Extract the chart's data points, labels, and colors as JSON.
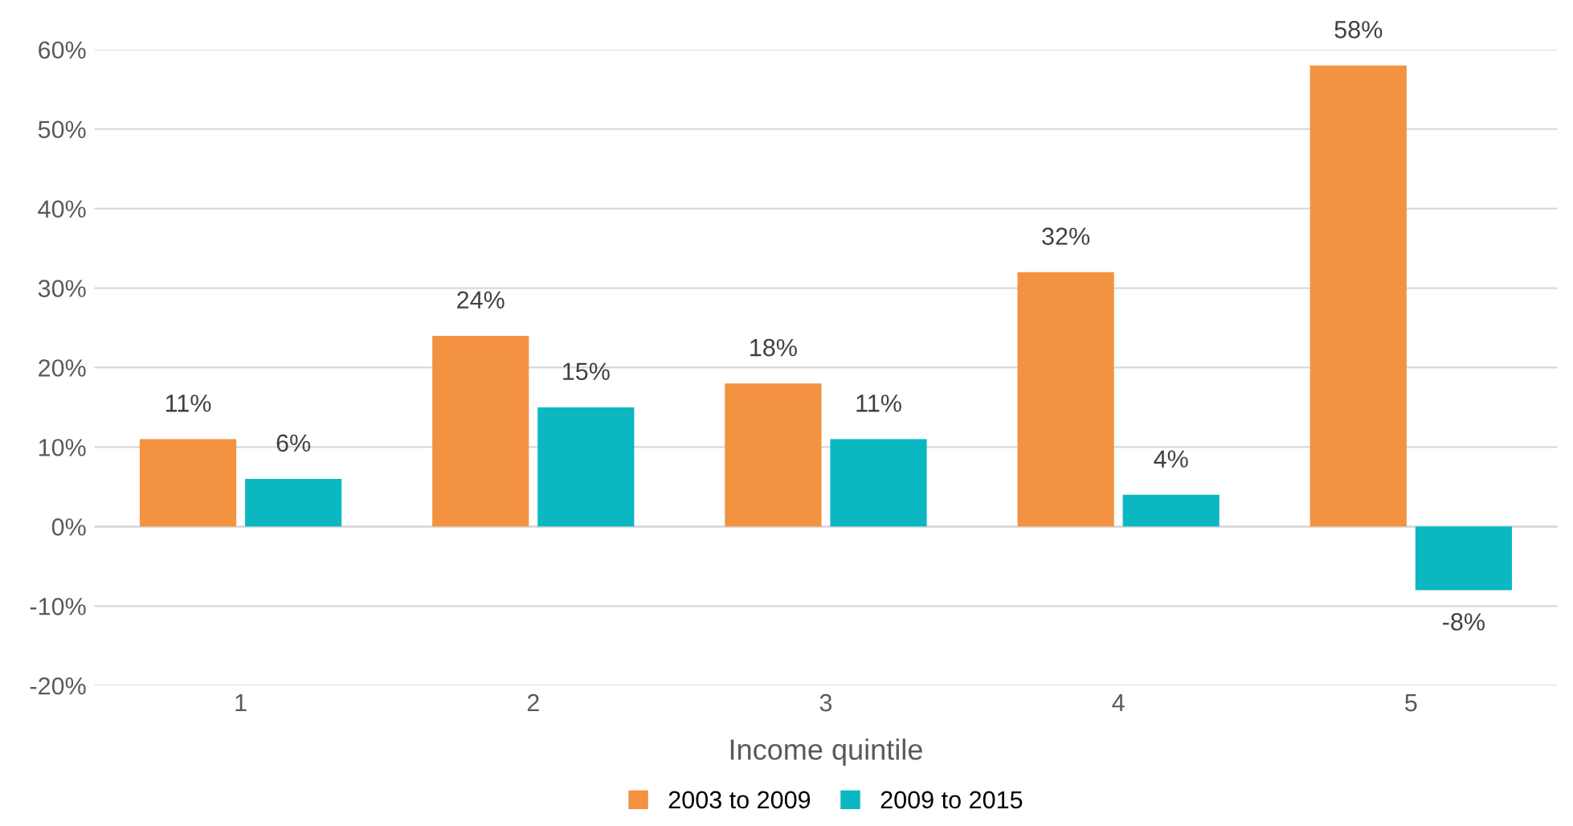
{
  "chart_data": {
    "type": "bar",
    "xlabel": "Income quintile",
    "categories": [
      "1",
      "2",
      "3",
      "4",
      "5"
    ],
    "series": [
      {
        "name": "2003 to 2009",
        "color": "#f39240",
        "values": [
          11,
          24,
          18,
          32,
          58
        ],
        "value_labels": [
          "11%",
          "24%",
          "18%",
          "32%",
          "58%"
        ]
      },
      {
        "name": "2009 to 2015",
        "color": "#0bb8c1",
        "values": [
          6,
          15,
          11,
          4,
          -8
        ],
        "value_labels": [
          "6%",
          "15%",
          "11%",
          "4%",
          "-8%"
        ]
      }
    ],
    "ylim": [
      -20,
      60
    ],
    "yticks": [
      {
        "value": -20,
        "label": "-20%"
      },
      {
        "value": -10,
        "label": "-10%"
      },
      {
        "value": 0,
        "label": "0%"
      },
      {
        "value": 10,
        "label": "10%"
      },
      {
        "value": 20,
        "label": "20%"
      },
      {
        "value": 30,
        "label": "30%"
      },
      {
        "value": 40,
        "label": "40%"
      },
      {
        "value": 50,
        "label": "50%"
      },
      {
        "value": 60,
        "label": "60%"
      }
    ],
    "grid": "y",
    "legend": "bottom"
  }
}
